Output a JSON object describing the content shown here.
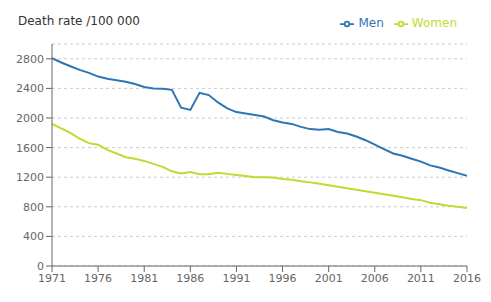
{
  "chart_data": {
    "type": "line",
    "ylabel": "Death rate /100 000",
    "x": [
      1971,
      1972,
      1973,
      1974,
      1975,
      1976,
      1977,
      1978,
      1979,
      1980,
      1981,
      1982,
      1983,
      1984,
      1985,
      1986,
      1987,
      1988,
      1989,
      1990,
      1991,
      1992,
      1993,
      1994,
      1995,
      1996,
      1997,
      1998,
      1999,
      2000,
      2001,
      2002,
      2003,
      2004,
      2005,
      2006,
      2007,
      2008,
      2009,
      2010,
      2011,
      2012,
      2013,
      2014,
      2015,
      2016
    ],
    "series": [
      {
        "name": "Men",
        "color": "#2E75B6",
        "values": [
          2810,
          2750,
          2700,
          2650,
          2610,
          2560,
          2530,
          2510,
          2490,
          2460,
          2420,
          2400,
          2395,
          2380,
          2140,
          2110,
          2340,
          2310,
          2210,
          2130,
          2080,
          2060,
          2040,
          2020,
          1970,
          1940,
          1920,
          1880,
          1850,
          1840,
          1850,
          1810,
          1790,
          1750,
          1700,
          1640,
          1580,
          1520,
          1490,
          1450,
          1410,
          1360,
          1330,
          1290,
          1255,
          1220
        ]
      },
      {
        "name": "Women",
        "color": "#C5D832",
        "values": [
          1920,
          1860,
          1800,
          1720,
          1660,
          1640,
          1570,
          1520,
          1470,
          1450,
          1420,
          1380,
          1340,
          1280,
          1250,
          1270,
          1240,
          1240,
          1260,
          1245,
          1230,
          1215,
          1200,
          1200,
          1195,
          1175,
          1165,
          1145,
          1130,
          1110,
          1090,
          1070,
          1050,
          1030,
          1010,
          990,
          970,
          950,
          930,
          905,
          890,
          855,
          835,
          815,
          800,
          785
        ]
      }
    ],
    "xlim": [
      1971,
      2016
    ],
    "xticks": [
      1971,
      1976,
      1981,
      1986,
      1991,
      1996,
      2001,
      2006,
      2011,
      2016
    ],
    "ylim": [
      0,
      3000
    ],
    "yticks": [
      0,
      400,
      800,
      1200,
      1600,
      2000,
      2400,
      2800
    ],
    "grid": "y",
    "legend": "upper right"
  }
}
